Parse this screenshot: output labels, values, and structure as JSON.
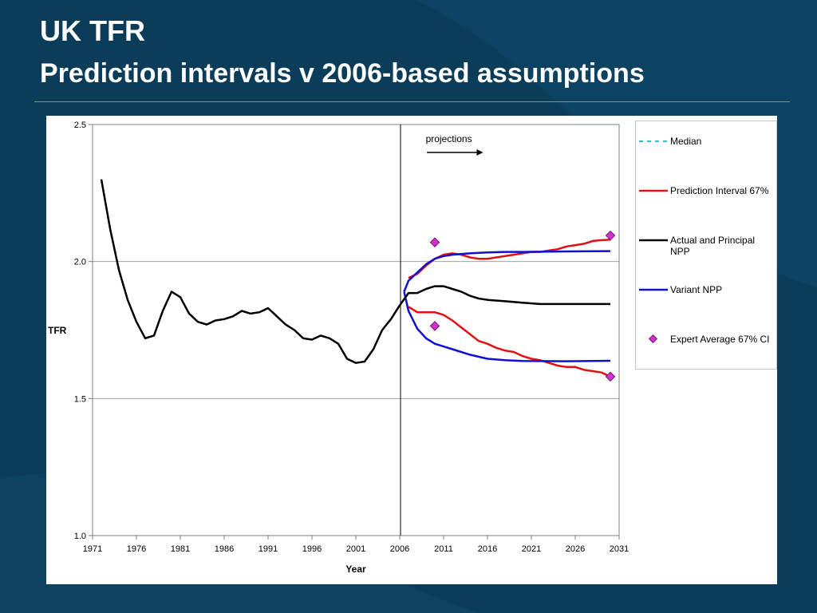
{
  "slide": {
    "title": "UK TFR",
    "subtitle": "Prediction intervals v 2006-based assumptions"
  },
  "colors": {
    "background": "#0b3d5a",
    "median": "#33bbcc",
    "prediction_interval": "#e01010",
    "actual_principal": "#000000",
    "variant": "#1010d0",
    "expert": "#cc33cc"
  },
  "chart_data": {
    "type": "line",
    "xlabel": "Year",
    "ylabel": "TFR",
    "xlim": [
      1971,
      2031
    ],
    "ylim": [
      1.0,
      2.5
    ],
    "xticks": [
      "1971",
      "1976",
      "1981",
      "1986",
      "1991",
      "1996",
      "2001",
      "2006",
      "2011",
      "2016",
      "2021",
      "2026",
      "2031"
    ],
    "yticks": [
      "1.0",
      "1.5",
      "2.0",
      "2.5"
    ],
    "grid": "horizontal",
    "legend_position": "right",
    "projection_year": 2006,
    "annotation": "projections",
    "series": [
      {
        "name": "Median",
        "style": "dashed",
        "x": [
          2007,
          2008,
          2009,
          2010,
          2011,
          2012,
          2013,
          2014,
          2015,
          2016,
          2018,
          2020,
          2022,
          2025,
          2030
        ],
        "y": [
          1.885,
          1.885,
          1.9,
          1.91,
          1.91,
          1.9,
          1.89,
          1.875,
          1.865,
          1.86,
          1.855,
          1.85,
          1.845,
          1.845,
          1.845
        ]
      },
      {
        "name": "Prediction Interval 67%",
        "style": "solid",
        "x": [
          2007,
          2008,
          2009,
          2010,
          2011,
          2012,
          2013,
          2014,
          2015,
          2016,
          2017,
          2018,
          2019,
          2020,
          2021,
          2022,
          2023,
          2024,
          2025,
          2026,
          2027,
          2028,
          2029,
          2030
        ],
        "y": [
          1.94,
          1.955,
          1.985,
          2.01,
          2.025,
          2.03,
          2.025,
          2.015,
          2.01,
          2.01,
          2.015,
          2.02,
          2.025,
          2.03,
          2.035,
          2.035,
          2.04,
          2.045,
          2.055,
          2.06,
          2.065,
          2.075,
          2.078,
          2.08
        ]
      },
      {
        "name": "Prediction Interval 67% (lower)",
        "style": "solid",
        "x": [
          2007,
          2008,
          2009,
          2010,
          2011,
          2012,
          2013,
          2014,
          2015,
          2016,
          2017,
          2018,
          2019,
          2020,
          2021,
          2022,
          2023,
          2024,
          2025,
          2026,
          2027,
          2028,
          2029,
          2030
        ],
        "y": [
          1.835,
          1.815,
          1.815,
          1.815,
          1.805,
          1.785,
          1.76,
          1.735,
          1.71,
          1.7,
          1.685,
          1.675,
          1.67,
          1.655,
          1.645,
          1.64,
          1.63,
          1.62,
          1.615,
          1.615,
          1.605,
          1.6,
          1.595,
          1.58
        ]
      },
      {
        "name": "Actual and Principal NPP",
        "style": "solid",
        "x": [
          1972,
          1973,
          1974,
          1975,
          1976,
          1977,
          1978,
          1979,
          1980,
          1981,
          1982,
          1983,
          1984,
          1985,
          1986,
          1987,
          1988,
          1989,
          1990,
          1991,
          1992,
          1993,
          1994,
          1995,
          1996,
          1997,
          1998,
          1999,
          2000,
          2001,
          2002,
          2003,
          2004,
          2005,
          2006,
          2007,
          2008,
          2009,
          2010,
          2011,
          2012,
          2013,
          2014,
          2015,
          2016,
          2018,
          2020,
          2022,
          2025,
          2030
        ],
        "y": [
          2.3,
          2.12,
          1.97,
          1.86,
          1.78,
          1.72,
          1.73,
          1.82,
          1.89,
          1.87,
          1.81,
          1.78,
          1.77,
          1.785,
          1.79,
          1.8,
          1.82,
          1.81,
          1.815,
          1.83,
          1.8,
          1.77,
          1.75,
          1.72,
          1.715,
          1.73,
          1.72,
          1.7,
          1.645,
          1.63,
          1.635,
          1.68,
          1.75,
          1.79,
          1.84,
          1.885,
          1.885,
          1.9,
          1.91,
          1.91,
          1.9,
          1.89,
          1.875,
          1.865,
          1.86,
          1.855,
          1.85,
          1.845,
          1.845,
          1.845
        ]
      },
      {
        "name": "Variant NPP",
        "style": "solid",
        "x": [
          2006.5,
          2007,
          2008,
          2009,
          2010,
          2011,
          2012,
          2014,
          2016,
          2018,
          2020,
          2025,
          2030
        ],
        "y": [
          1.89,
          1.93,
          1.96,
          1.99,
          2.01,
          2.02,
          2.025,
          2.03,
          2.033,
          2.035,
          2.035,
          2.037,
          2.038
        ]
      },
      {
        "name": "Variant NPP (lower)",
        "style": "solid",
        "x": [
          2006.5,
          2007,
          2008,
          2009,
          2010,
          2011,
          2012,
          2014,
          2016,
          2018,
          2020,
          2025,
          2030
        ],
        "y": [
          1.89,
          1.82,
          1.755,
          1.72,
          1.7,
          1.69,
          1.68,
          1.66,
          1.645,
          1.64,
          1.637,
          1.636,
          1.638
        ]
      },
      {
        "name": "Expert Average 67% CI",
        "style": "markers",
        "x": [
          2010,
          2010,
          2030,
          2030
        ],
        "y": [
          2.07,
          1.765,
          2.095,
          1.58
        ]
      }
    ]
  },
  "legend": {
    "items": [
      {
        "label": "Median",
        "key": "median"
      },
      {
        "label": "Prediction Interval 67%",
        "key": "prediction_interval"
      },
      {
        "label": "Actual and Principal NPP",
        "key": "actual_principal"
      },
      {
        "label": "Variant NPP",
        "key": "variant"
      },
      {
        "label": "Expert Average 67% CI",
        "key": "expert"
      }
    ]
  }
}
